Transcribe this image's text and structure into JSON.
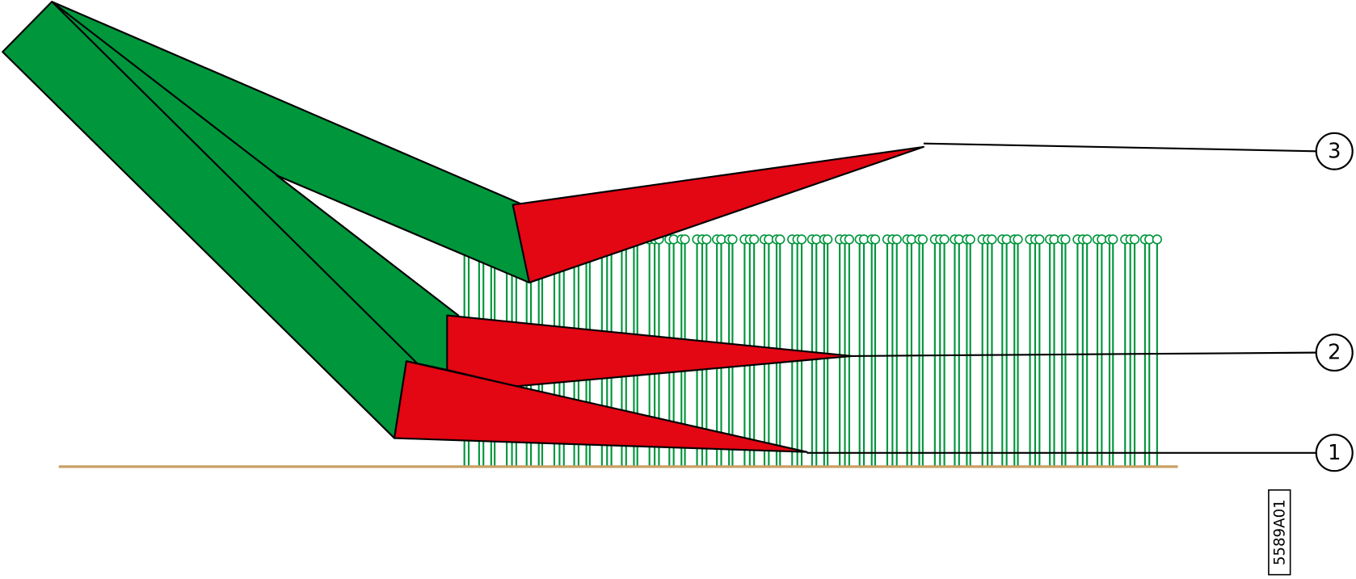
{
  "callouts": [
    {
      "label": "3"
    },
    {
      "label": "2"
    },
    {
      "label": "1"
    }
  ],
  "figure_id": "5589A01"
}
